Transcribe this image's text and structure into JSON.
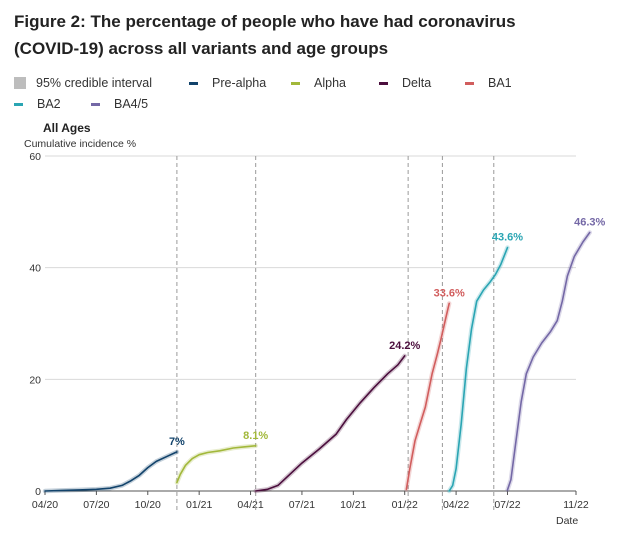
{
  "title_line1": "Figure 2: The percentage of people who have had coronavirus",
  "title_line2": "(COVID-19) across all variants and age groups",
  "legend": {
    "ci_label": "95% credible interval",
    "ci_color": "#bdbdbd",
    "items": [
      {
        "label": "Pre-alpha",
        "color": "#12436b"
      },
      {
        "label": "Alpha",
        "color": "#a2b83a"
      },
      {
        "label": "Delta",
        "color": "#4b0e3d"
      },
      {
        "label": "BA1",
        "color": "#d15d5d"
      },
      {
        "label": "BA2",
        "color": "#2aa5b3"
      },
      {
        "label": "BA4/5",
        "color": "#7468a6"
      }
    ]
  },
  "chart_data": {
    "type": "line",
    "title": "All Ages",
    "ylabel": "Cumulative incidence %",
    "xlabel": "Date",
    "ylim": [
      0,
      60
    ],
    "xlim": [
      0,
      31
    ],
    "yticks": [
      0,
      20,
      40,
      60
    ],
    "xticks": [
      {
        "label": "04/20",
        "x": 0
      },
      {
        "label": "07/20",
        "x": 3
      },
      {
        "label": "10/20",
        "x": 6
      },
      {
        "label": "01/21",
        "x": 9
      },
      {
        "label": "04/21",
        "x": 12
      },
      {
        "label": "07/21",
        "x": 15
      },
      {
        "label": "10/21",
        "x": 18
      },
      {
        "label": "01/22",
        "x": 21
      },
      {
        "label": "04/22",
        "x": 24
      },
      {
        "label": "07/22",
        "x": 27
      },
      {
        "label": "11/22",
        "x": 31
      }
    ],
    "dividers": [
      7.7,
      12.3,
      21.2,
      23.2,
      26.2
    ],
    "series": [
      {
        "name": "Pre-alpha",
        "color": "#12436b",
        "end_label": "7%",
        "points": [
          [
            0,
            0
          ],
          [
            1,
            0.1
          ],
          [
            2,
            0.2
          ],
          [
            3,
            0.3
          ],
          [
            3.8,
            0.5
          ],
          [
            4.5,
            1.0
          ],
          [
            5,
            1.8
          ],
          [
            5.5,
            2.8
          ],
          [
            6,
            4.2
          ],
          [
            6.5,
            5.3
          ],
          [
            7.2,
            6.3
          ],
          [
            7.7,
            7.0
          ]
        ]
      },
      {
        "name": "Alpha",
        "color": "#a2b83a",
        "end_label": "8.1%",
        "points": [
          [
            7.7,
            1.5
          ],
          [
            7.9,
            3.0
          ],
          [
            8.2,
            4.6
          ],
          [
            8.6,
            5.8
          ],
          [
            9.0,
            6.5
          ],
          [
            9.5,
            6.9
          ],
          [
            10.2,
            7.2
          ],
          [
            11.0,
            7.7
          ],
          [
            11.6,
            7.9
          ],
          [
            12.3,
            8.1
          ]
        ]
      },
      {
        "name": "Delta",
        "color": "#4b0e3d",
        "end_label": "24.2%",
        "points": [
          [
            12.3,
            0
          ],
          [
            13.0,
            0.3
          ],
          [
            13.6,
            1.0
          ],
          [
            14.3,
            3.0
          ],
          [
            15.0,
            5.0
          ],
          [
            16.0,
            7.5
          ],
          [
            17.0,
            10.2
          ],
          [
            17.6,
            12.8
          ],
          [
            18.4,
            15.8
          ],
          [
            19.2,
            18.5
          ],
          [
            20.0,
            21.0
          ],
          [
            20.6,
            22.6
          ],
          [
            21.0,
            24.2
          ]
        ]
      },
      {
        "name": "BA1",
        "color": "#d15d5d",
        "end_label": "33.6%",
        "points": [
          [
            21.1,
            0.3
          ],
          [
            21.3,
            4
          ],
          [
            21.6,
            9
          ],
          [
            21.9,
            12
          ],
          [
            22.2,
            15
          ],
          [
            22.6,
            21
          ],
          [
            22.9,
            24.5
          ],
          [
            23.1,
            27
          ],
          [
            23.4,
            31
          ],
          [
            23.6,
            33.6
          ]
        ]
      },
      {
        "name": "BA2",
        "color": "#2aa5b3",
        "end_label": "43.6%",
        "points": [
          [
            23.6,
            0
          ],
          [
            23.8,
            1.0
          ],
          [
            24.0,
            4
          ],
          [
            24.3,
            12
          ],
          [
            24.6,
            22
          ],
          [
            24.9,
            29
          ],
          [
            25.2,
            34
          ],
          [
            25.6,
            36
          ],
          [
            26.0,
            37.5
          ],
          [
            26.3,
            38.8
          ],
          [
            26.6,
            40.5
          ],
          [
            27.0,
            43.6
          ]
        ]
      },
      {
        "name": "BA4/5",
        "color": "#7468a6",
        "end_label": "46.3%",
        "points": [
          [
            27.0,
            0.2
          ],
          [
            27.2,
            2
          ],
          [
            27.5,
            9
          ],
          [
            27.8,
            16
          ],
          [
            28.1,
            21
          ],
          [
            28.5,
            24
          ],
          [
            29.0,
            26.5
          ],
          [
            29.5,
            28.5
          ],
          [
            29.9,
            30.5
          ],
          [
            30.2,
            34
          ],
          [
            30.5,
            38.5
          ],
          [
            30.9,
            42
          ],
          [
            31.4,
            44.6
          ],
          [
            31.8,
            46.3
          ]
        ]
      }
    ]
  }
}
